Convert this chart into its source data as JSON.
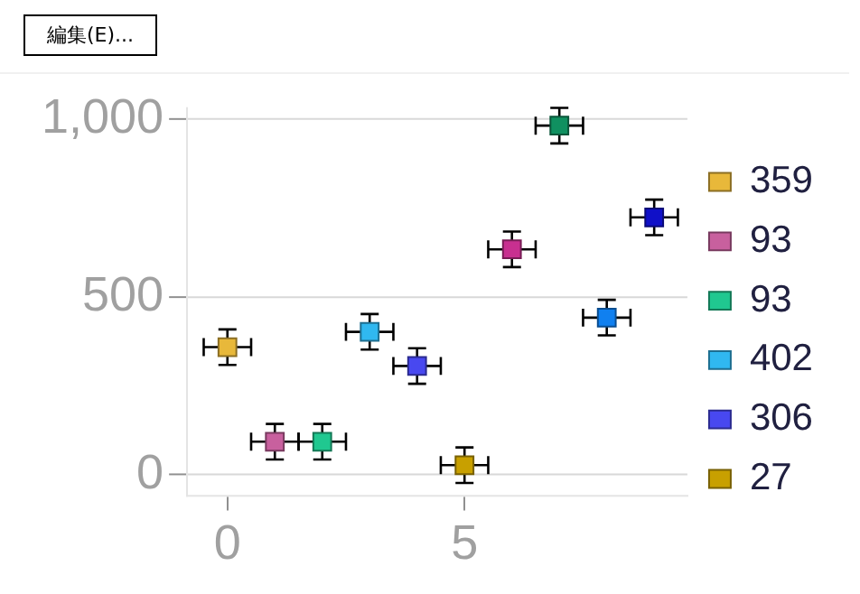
{
  "chart_data": {
    "type": "scatter",
    "annotations": [
      "編集(E)..."
    ],
    "xlim": [
      -0.85,
      9.7
    ],
    "xticks": [
      0,
      5
    ],
    "ylim": [
      -60,
      1030
    ],
    "yticks": [
      0,
      500,
      {
        "value": 1000,
        "label": "1,000"
      }
    ],
    "grid": "y",
    "legend": "right",
    "marker": "square",
    "series": [
      {
        "name": "359",
        "color": "#e8b83a",
        "x": [
          0
        ],
        "values": [
          359
        ],
        "errors": [
          50
        ],
        "xerrors": [
          0.5
        ]
      },
      {
        "name": "93",
        "color": "#c8609e",
        "x": [
          1
        ],
        "values": [
          93
        ],
        "errors": [
          50
        ],
        "xerrors": [
          0.5
        ]
      },
      {
        "name": "93",
        "color": "#20c890",
        "x": [
          2
        ],
        "values": [
          93
        ],
        "errors": [
          50
        ],
        "xerrors": [
          0.5
        ]
      },
      {
        "name": "402",
        "color": "#30b8f0",
        "x": [
          3
        ],
        "values": [
          402
        ],
        "errors": [
          50
        ],
        "xerrors": [
          0.5
        ]
      },
      {
        "name": "306",
        "color": "#4848f0",
        "x": [
          4
        ],
        "values": [
          306
        ],
        "errors": [
          50
        ],
        "xerrors": [
          0.5
        ]
      },
      {
        "name": "27",
        "color": "#c8a000",
        "x": [
          5
        ],
        "values": [
          27
        ],
        "errors": [
          50
        ],
        "xerrors": [
          0.5
        ]
      },
      {
        "color": "#c83090",
        "x": [
          6
        ],
        "values": [
          634
        ],
        "errors": [
          50
        ],
        "xerrors": [
          0.5
        ]
      },
      {
        "color": "#109060",
        "x": [
          7
        ],
        "values": [
          982
        ],
        "errors": [
          50
        ],
        "xerrors": [
          0.5
        ]
      },
      {
        "color": "#1080f0",
        "x": [
          8
        ],
        "values": [
          442
        ],
        "errors": [
          50
        ],
        "xerrors": [
          0.5
        ]
      },
      {
        "color": "#1010c8",
        "x": [
          9
        ],
        "values": [
          724
        ],
        "errors": [
          50
        ],
        "xerrors": [
          0.5
        ]
      }
    ]
  }
}
